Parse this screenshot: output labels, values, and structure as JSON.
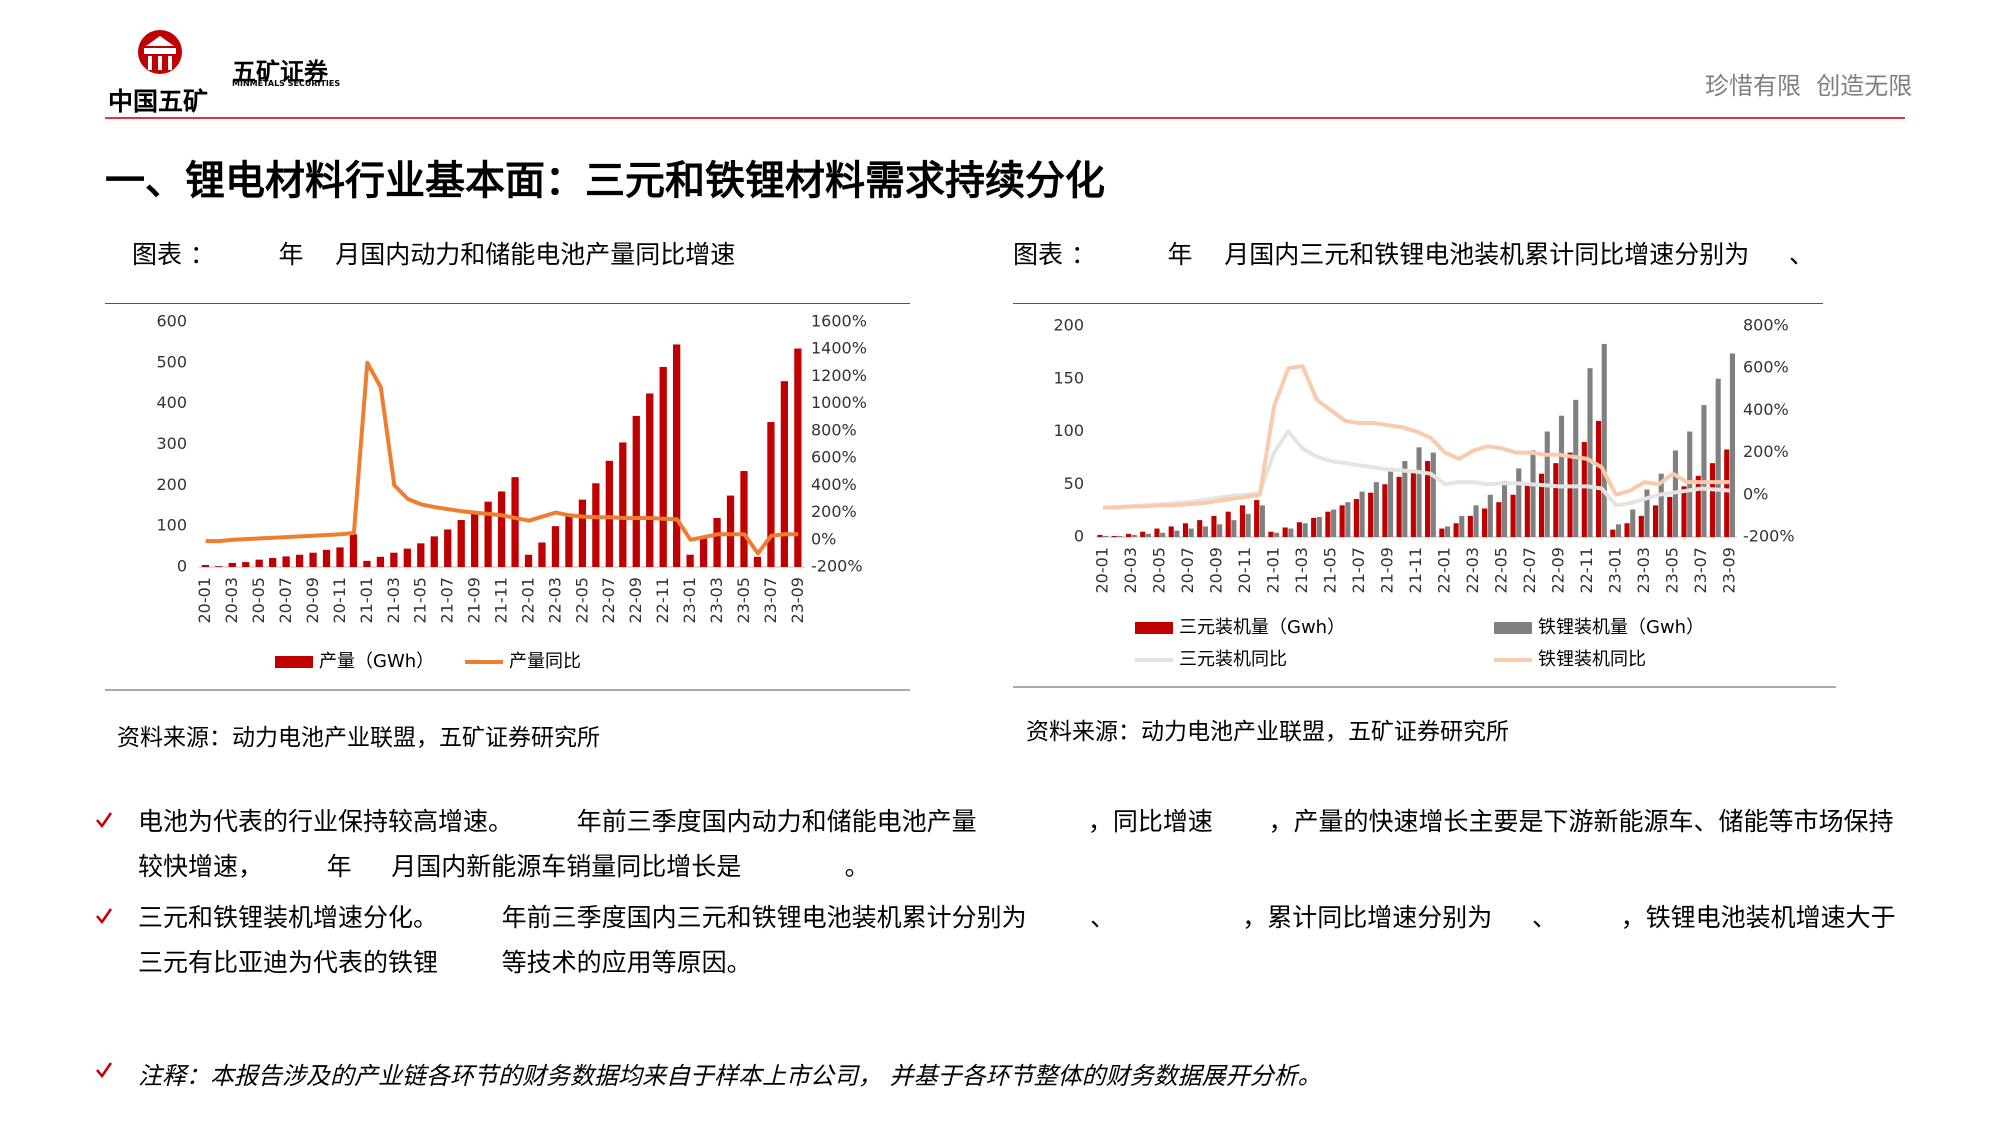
{
  "header": {
    "org": "中国五矿",
    "brand": "五矿证券",
    "brand_en": "MINMETALS SECURITIES",
    "slogan": "珍惜有限  创造无限"
  },
  "title": "一、锂电材料行业基本面：三元和铁锂材料需求持续分化",
  "chart_data": [
    {
      "type": "bar",
      "title": "图表 ：        年    月国内动力和储能电池产量同比增速",
      "source": "资料来源：动力电池产业联盟，五矿证券研究所",
      "categories": [
        "20-01",
        null,
        "20-03",
        null,
        "20-05",
        null,
        "20-07",
        null,
        "20-09",
        null,
        "20-11",
        null,
        "21-01",
        null,
        "21-03",
        null,
        "21-05",
        null,
        "21-07",
        null,
        "21-09",
        null,
        "21-11",
        null,
        "22-01",
        null,
        "22-03",
        null,
        "22-05",
        null,
        "22-07",
        null,
        "22-09",
        null,
        "22-11",
        null,
        "23-01",
        null,
        "23-03",
        null,
        "23-05",
        null,
        "23-07",
        null,
        "23-09"
      ],
      "series": [
        {
          "name": "产量（GWh）",
          "color": "#c00000",
          "values": [
            5,
            2,
            10,
            12,
            18,
            22,
            26,
            30,
            35,
            42,
            48,
            80,
            15,
            25,
            35,
            45,
            58,
            75,
            92,
            115,
            135,
            160,
            185,
            220,
            30,
            60,
            100,
            130,
            165,
            205,
            260,
            305,
            370,
            425,
            490,
            545,
            30,
            75,
            120,
            175,
            235,
            25,
            355,
            455,
            535
          ]
        },
        {
          "name": "产量同比",
          "color": "#ed7d31",
          "axis": "y2",
          "values": [
            -10,
            -10,
            0,
            5,
            10,
            15,
            20,
            25,
            30,
            35,
            40,
            50,
            1300,
            1120,
            400,
            300,
            260,
            240,
            225,
            210,
            200,
            190,
            180,
            160,
            140,
            170,
            200,
            180,
            170,
            165,
            165,
            160,
            160,
            160,
            155,
            150,
            0,
            20,
            40,
            40,
            40,
            -100,
            30,
            40,
            40
          ]
        }
      ],
      "ylim": [
        0,
        600
      ],
      "yticks": [
        0,
        100,
        200,
        300,
        400,
        500,
        600
      ],
      "y2lim": [
        -200,
        1600
      ],
      "y2ticks": [
        {
          "value": -200,
          "label": "-200%"
        },
        {
          "value": 0,
          "label": "0%"
        },
        {
          "value": 200,
          "label": "200%"
        },
        {
          "value": 400,
          "label": "400%"
        },
        {
          "value": 600,
          "label": "600%"
        },
        {
          "value": 800,
          "label": "800%"
        },
        {
          "value": 1000,
          "label": "1000%"
        },
        {
          "value": 1200,
          "label": "1200%"
        },
        {
          "value": 1400,
          "label": "1400%"
        },
        {
          "value": 1600,
          "label": "1600%"
        }
      ],
      "grid": false,
      "legend": "bottom"
    },
    {
      "type": "bar",
      "title": "图表 ：         年    月国内三元和铁锂电池装机累计同比增速分别为     、",
      "source": "资料来源：动力电池产业联盟，五矿证券研究所",
      "categories": [
        "20-01",
        null,
        "20-03",
        null,
        "20-05",
        null,
        "20-07",
        null,
        "20-09",
        null,
        "20-11",
        null,
        "21-01",
        null,
        "21-03",
        null,
        "21-05",
        null,
        "21-07",
        null,
        "21-09",
        null,
        "21-11",
        null,
        "22-01",
        null,
        "22-03",
        null,
        "22-05",
        null,
        "22-07",
        null,
        "22-09",
        null,
        "22-11",
        null,
        "23-01",
        null,
        "23-03",
        null,
        "23-05",
        null,
        "23-07",
        null,
        "23-09"
      ],
      "series": [
        {
          "name": "三元装机量（Gwh）",
          "color": "#c00000",
          "values": [
            2,
            1,
            3,
            5,
            8,
            10,
            13,
            16,
            20,
            24,
            30,
            35,
            5,
            9,
            14,
            18,
            24,
            30,
            36,
            42,
            50,
            57,
            64,
            72,
            8,
            13,
            20,
            27,
            33,
            40,
            50,
            60,
            70,
            80,
            90,
            110,
            7,
            13,
            20,
            30,
            38,
            48,
            58,
            70,
            83
          ]
        },
        {
          "name": "铁锂装机量（Gwh）",
          "color": "#808080",
          "values": [
            1,
            1,
            2,
            3,
            4,
            6,
            8,
            10,
            12,
            16,
            22,
            30,
            4,
            8,
            13,
            19,
            26,
            33,
            43,
            52,
            62,
            72,
            85,
            80,
            10,
            20,
            30,
            40,
            53,
            65,
            82,
            100,
            115,
            130,
            160,
            183,
            12,
            26,
            45,
            60,
            82,
            100,
            125,
            150,
            174
          ]
        },
        {
          "name": "三元装机同比",
          "color": "#e4e4e0",
          "axis": "y2",
          "values": [
            -60,
            -58,
            -55,
            -50,
            -45,
            -40,
            -35,
            -25,
            -15,
            -5,
            0,
            10,
            200,
            300,
            220,
            180,
            160,
            150,
            140,
            130,
            120,
            115,
            110,
            100,
            50,
            60,
            60,
            50,
            55,
            55,
            50,
            45,
            40,
            40,
            40,
            30,
            -50,
            -40,
            -20,
            0,
            10,
            20,
            30,
            25,
            20
          ]
        },
        {
          "name": "铁锂装机同比",
          "color": "#f8cbad",
          "axis": "y2",
          "values": [
            -60,
            -60,
            -55,
            -55,
            -50,
            -50,
            -45,
            -40,
            -30,
            -20,
            -10,
            0,
            420,
            600,
            610,
            450,
            400,
            350,
            340,
            340,
            330,
            320,
            300,
            270,
            200,
            170,
            210,
            230,
            220,
            200,
            200,
            190,
            190,
            180,
            170,
            130,
            0,
            20,
            60,
            50,
            100,
            60,
            60,
            60,
            60
          ]
        }
      ],
      "ylim": [
        0,
        200
      ],
      "yticks": [
        0,
        50,
        100,
        150,
        200
      ],
      "y2lim": [
        -200,
        800
      ],
      "y2ticks": [
        {
          "value": -200,
          "label": "-200%"
        },
        {
          "value": 0,
          "label": "0%"
        },
        {
          "value": 200,
          "label": "200%"
        },
        {
          "value": 400,
          "label": "400%"
        },
        {
          "value": 600,
          "label": "600%"
        },
        {
          "value": 800,
          "label": "800%"
        }
      ],
      "grid": false,
      "legend": "bottom"
    }
  ],
  "bullets": [
    "电池为代表的行业保持较高增速。        年前三季度国内动力和储能电池产量              ，同比增速       ，产量的快速增长主要是下游新能源车、储能等市场保持较快增速，        年     月国内新能源车销量同比增长是             。",
    "三元和铁锂装机增速分化。        年前三季度国内三元和铁锂电池装机累计分别为        、                ，累计同比增速分别为     、        ，铁锂电池装机增速大于三元有比亚迪为代表的铁锂        等技术的应用等原因。"
  ],
  "note": "注释：本报告涉及的产业链各环节的财务数据均来自于样本上市公司， 并基于各环节整体的财务数据展开分析。"
}
